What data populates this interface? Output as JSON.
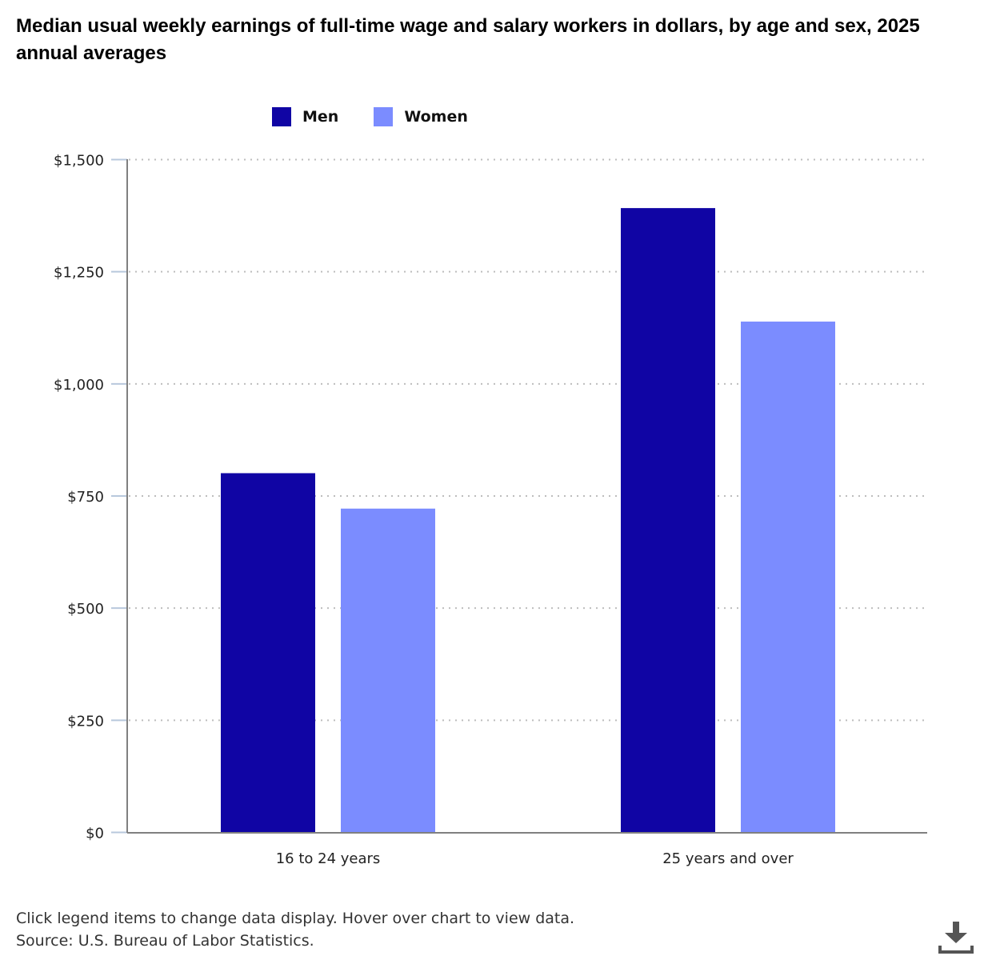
{
  "chart_data": {
    "type": "bar",
    "title": "Median usual weekly earnings of full-time wage and salary workers in dollars, by age and sex, 2025 annual averages",
    "categories": [
      "16 to 24 years",
      "25 years and over"
    ],
    "series": [
      {
        "name": "Men",
        "color": "#1005a4",
        "values": [
          800,
          1391
        ]
      },
      {
        "name": "Women",
        "color": "#7b8cff",
        "values": [
          721,
          1138
        ]
      }
    ],
    "xlabel": "",
    "ylabel": "",
    "ylim": [
      0,
      1500
    ],
    "yticks": [
      0,
      250,
      500,
      750,
      1000,
      1250,
      1500
    ],
    "ytick_labels": [
      "$0",
      "$250",
      "$500",
      "$750",
      "$1,000",
      "$1,250",
      "$1,500"
    ],
    "grid": true,
    "legend_position": "top"
  },
  "footer": {
    "note": "Click legend items to change data display. Hover over chart to view data.",
    "source": "Source: U.S. Bureau of Labor Statistics."
  },
  "icons": {
    "download": "download-icon"
  }
}
